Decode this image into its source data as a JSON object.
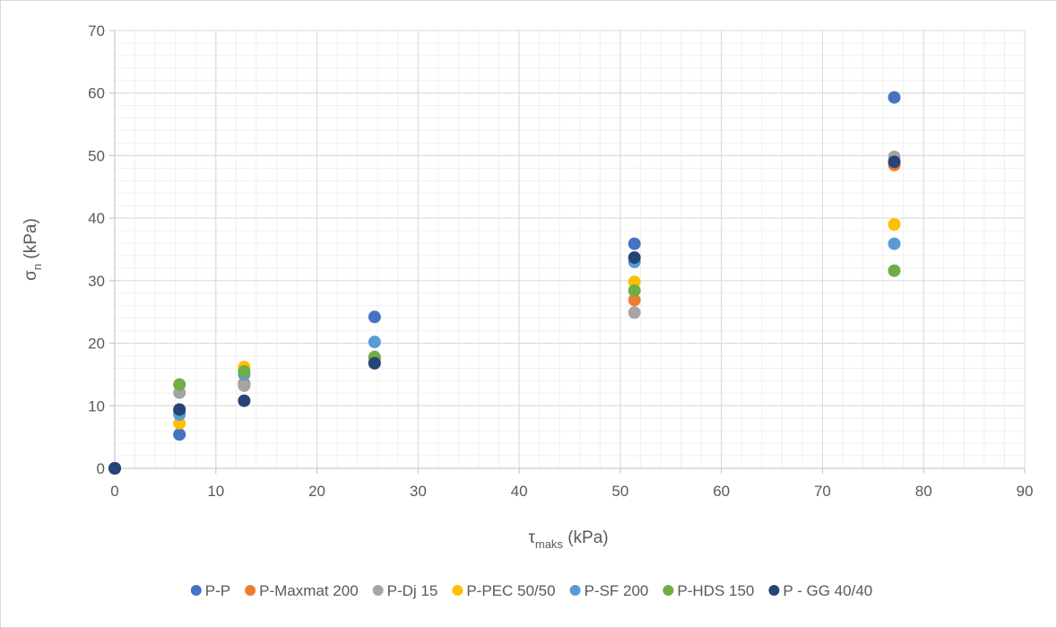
{
  "chart_data": {
    "type": "scatter",
    "title": "",
    "xlabel": {
      "main": "τ",
      "sub": "maks",
      "tail": " (kPa)"
    },
    "ylabel": {
      "main": "σ",
      "sub": "n",
      "tail": " (kPa)"
    },
    "xlim": [
      0,
      90
    ],
    "ylim": [
      0,
      70
    ],
    "xticks": [
      0,
      10,
      20,
      30,
      40,
      50,
      60,
      70,
      80,
      90
    ],
    "yticks": [
      0,
      10,
      20,
      30,
      40,
      50,
      60,
      70
    ],
    "grid": {
      "major": true,
      "minor": true
    },
    "legend_position": "bottom",
    "series": [
      {
        "name": "P-P",
        "color": "#4472C4",
        "points": [
          [
            0,
            0
          ],
          [
            6.4,
            5.4
          ],
          [
            12.8,
            13.5
          ],
          [
            25.7,
            24.2
          ],
          [
            51.4,
            35.9
          ],
          [
            77.1,
            59.3
          ]
        ]
      },
      {
        "name": "P-Maxmat 200",
        "color": "#ED7D31",
        "points": [
          [
            0,
            0
          ],
          [
            6.4,
            9.0
          ],
          [
            12.8,
            13.4
          ],
          [
            25.7,
            17.7
          ],
          [
            51.4,
            26.9
          ],
          [
            77.1,
            48.5
          ]
        ]
      },
      {
        "name": "P-Dj 15",
        "color": "#A5A5A5",
        "points": [
          [
            0,
            0
          ],
          [
            6.4,
            12.1
          ],
          [
            12.8,
            13.2
          ],
          [
            25.7,
            17.5
          ],
          [
            51.4,
            24.9
          ],
          [
            77.1,
            49.8
          ]
        ]
      },
      {
        "name": "P-PEC 50/50",
        "color": "#FFC000",
        "points": [
          [
            0,
            0
          ],
          [
            6.4,
            7.2
          ],
          [
            12.8,
            16.2
          ],
          [
            25.7,
            16.9
          ],
          [
            51.4,
            29.8
          ],
          [
            77.1,
            39.0
          ]
        ]
      },
      {
        "name": "P-SF 200",
        "color": "#5B9BD5",
        "points": [
          [
            0,
            0
          ],
          [
            6.4,
            8.6
          ],
          [
            12.8,
            15.0
          ],
          [
            25.7,
            20.2
          ],
          [
            51.4,
            33.0
          ],
          [
            77.1,
            35.9
          ]
        ]
      },
      {
        "name": "P-HDS 150",
        "color": "#70AD47",
        "points": [
          [
            0,
            0
          ],
          [
            6.4,
            13.4
          ],
          [
            12.8,
            15.5
          ],
          [
            25.7,
            17.8
          ],
          [
            51.4,
            28.4
          ],
          [
            77.1,
            31.6
          ]
        ]
      },
      {
        "name": "P - GG 40/40",
        "color": "#264478",
        "points": [
          [
            0,
            0
          ],
          [
            6.4,
            9.4
          ],
          [
            12.8,
            10.8
          ],
          [
            25.7,
            16.8
          ],
          [
            51.4,
            33.7
          ],
          [
            77.1,
            49.0
          ]
        ]
      }
    ]
  }
}
